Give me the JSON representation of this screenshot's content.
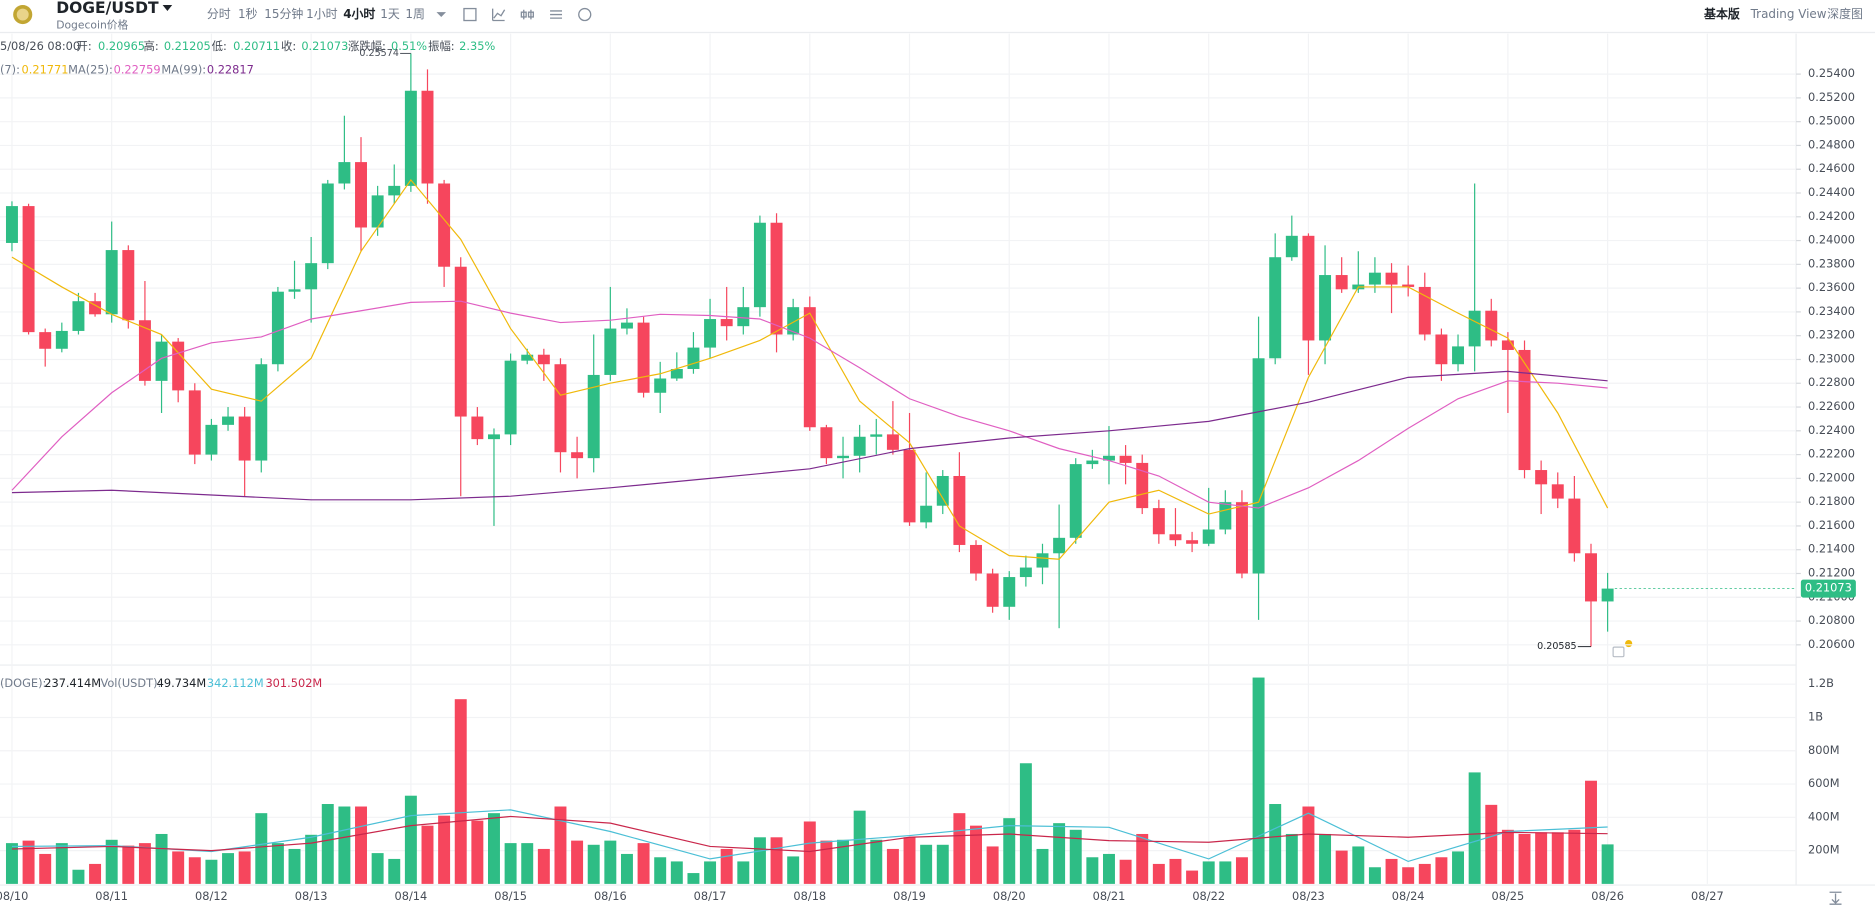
{
  "chart_data": {
    "type": "candlestick",
    "symbol": "DOGE/USDT",
    "subtitle": "Dogecoin价格",
    "intervals": [
      "分时",
      "1秒",
      "15分钟",
      "1小时",
      "4小时",
      "1天",
      "1周"
    ],
    "active_interval": "4小时",
    "views": [
      "基本版",
      "Trading View",
      "深度图"
    ],
    "active_view": "基本版",
    "ohlc_header": {
      "time": "5/08/26 08:00",
      "items": [
        {
          "label": "开:",
          "value": "0.20965"
        },
        {
          "label": "高:",
          "value": "0.21205"
        },
        {
          "label": "低:",
          "value": "0.20711"
        },
        {
          "label": "收:",
          "value": "0.21073"
        },
        {
          "label": "涨跌幅:",
          "value": "0.51%"
        },
        {
          "label": "振幅:",
          "value": "2.35%"
        }
      ]
    },
    "up_color": "#2ebd85",
    "down_color": "#f6465d",
    "categories": [
      "08/10",
      null,
      null,
      null,
      null,
      null,
      "08/11",
      null,
      null,
      null,
      null,
      null,
      "08/12",
      null,
      null,
      null,
      null,
      null,
      "08/13",
      null,
      null,
      null,
      null,
      null,
      "08/14",
      null,
      null,
      null,
      null,
      null,
      "08/15",
      null,
      null,
      null,
      null,
      null,
      "08/16",
      null,
      null,
      null,
      null,
      null,
      "08/17",
      null,
      null,
      null,
      null,
      null,
      "08/18",
      null,
      null,
      null,
      null,
      null,
      "08/19",
      null,
      null,
      null,
      null,
      null,
      "08/20",
      null,
      null,
      null,
      null,
      null,
      "08/21",
      null,
      null,
      null,
      null,
      null,
      "08/22",
      null,
      null,
      null,
      null,
      null,
      "08/23",
      null,
      null,
      null,
      null,
      null,
      "08/24",
      null,
      null,
      null,
      null,
      null,
      "08/25",
      null,
      null,
      null,
      null,
      null,
      "08/26",
      null,
      null,
      null,
      null,
      null,
      "08/27"
    ],
    "open": [
      0.2398,
      0.2429,
      0.2323,
      0.2309,
      0.2324,
      0.2349,
      0.2338,
      0.2392,
      0.2333,
      0.2282,
      0.2315,
      0.2274,
      0.222,
      0.2245,
      0.2252,
      0.2215,
      0.2296,
      0.2357,
      0.2359,
      0.2381,
      0.2448,
      0.2466,
      0.2411,
      0.2438,
      0.2446,
      0.2526,
      0.2448,
      0.2378,
      0.2252,
      0.2233,
      0.2237,
      0.2299,
      0.2304,
      0.2296,
      0.2222,
      0.2217,
      0.2287,
      0.2326,
      0.2331,
      0.2272,
      0.2284,
      0.2292,
      0.231,
      0.2334,
      0.2328,
      0.2344,
      0.2415,
      0.2321,
      0.2344,
      0.2243,
      0.2217,
      0.2219,
      0.2235,
      0.2237,
      0.2224,
      0.2163,
      0.2177,
      0.2202,
      0.2144,
      0.212,
      0.2092,
      0.2117,
      0.2125,
      0.2137,
      0.215,
      0.2212,
      0.2215,
      0.2219,
      0.2213,
      0.2175,
      0.2153,
      0.2148,
      0.2145,
      0.2157,
      0.218,
      0.212,
      0.2301,
      0.2386,
      0.2404,
      0.2316,
      0.2371,
      0.2359,
      0.2363,
      0.2373,
      0.2363,
      0.2361,
      0.2321,
      0.2296,
      0.2311,
      0.2341,
      0.2316,
      0.2308,
      0.2207,
      0.2195,
      0.2183,
      0.2137,
      0.20965,
      null,
      null,
      null,
      null,
      null,
      null
    ],
    "high": [
      0.2433,
      0.2431,
      0.2326,
      0.2331,
      0.2356,
      0.2356,
      0.2416,
      0.2396,
      0.2366,
      0.2321,
      0.2318,
      0.228,
      0.225,
      0.226,
      0.226,
      0.2301,
      0.2361,
      0.2383,
      0.2403,
      0.2451,
      0.2505,
      0.2487,
      0.2446,
      0.2464,
      0.25574,
      0.2544,
      0.2451,
      0.2386,
      0.226,
      0.2242,
      0.2305,
      0.2309,
      0.2309,
      0.2301,
      0.2235,
      0.2321,
      0.2361,
      0.2343,
      0.2336,
      0.2298,
      0.2306,
      0.2323,
      0.2351,
      0.2361,
      0.2361,
      0.2421,
      0.2423,
      0.2351,
      0.2353,
      0.2245,
      0.2235,
      0.2245,
      0.225,
      0.2265,
      0.2255,
      0.2205,
      0.2207,
      0.2222,
      0.2148,
      0.2124,
      0.2122,
      0.2135,
      0.2145,
      0.2178,
      0.2217,
      0.2224,
      0.2244,
      0.2228,
      0.222,
      0.2182,
      0.2175,
      0.2155,
      0.2192,
      0.219,
      0.219,
      0.2336,
      0.2406,
      0.2421,
      0.2406,
      0.2396,
      0.2386,
      0.2391,
      0.2386,
      0.2381,
      0.2379,
      0.2373,
      0.2326,
      0.2321,
      0.2448,
      0.2351,
      0.2323,
      0.2316,
      0.2215,
      0.2205,
      0.2202,
      0.2145,
      0.21205,
      null,
      null,
      null,
      null,
      null,
      null
    ],
    "low": [
      0.2391,
      0.2321,
      0.2294,
      0.2306,
      0.2321,
      0.2336,
      0.2331,
      0.2326,
      0.2278,
      0.2255,
      0.2264,
      0.2212,
      0.2215,
      0.224,
      0.2185,
      0.2205,
      0.229,
      0.2351,
      0.2331,
      0.2376,
      0.2443,
      0.2391,
      0.2404,
      0.2431,
      0.2441,
      0.2431,
      0.2361,
      0.2185,
      0.2228,
      0.216,
      0.2228,
      0.2296,
      0.2282,
      0.2205,
      0.22,
      0.2205,
      0.2282,
      0.2321,
      0.2268,
      0.2255,
      0.2282,
      0.2288,
      0.2301,
      0.2316,
      0.2321,
      0.2336,
      0.2306,
      0.2316,
      0.224,
      0.2212,
      0.22,
      0.2205,
      0.222,
      0.222,
      0.216,
      0.2158,
      0.217,
      0.2138,
      0.2114,
      0.2087,
      0.2081,
      0.2109,
      0.2111,
      0.2074,
      0.2145,
      0.2208,
      0.2195,
      0.2195,
      0.217,
      0.2145,
      0.2143,
      0.2138,
      0.2143,
      0.2153,
      0.2116,
      0.2081,
      0.2296,
      0.2383,
      0.2287,
      0.2296,
      0.2356,
      0.2356,
      0.2356,
      0.2339,
      0.2353,
      0.2316,
      0.2282,
      0.229,
      0.229,
      0.2311,
      0.2255,
      0.22,
      0.217,
      0.2175,
      0.213,
      0.20585,
      0.20711,
      null,
      null,
      null,
      null,
      null,
      null
    ],
    "close": [
      0.2429,
      0.2323,
      0.2309,
      0.2324,
      0.2349,
      0.2338,
      0.2392,
      0.2333,
      0.2282,
      0.2315,
      0.2274,
      0.222,
      0.2245,
      0.2252,
      0.2215,
      0.2296,
      0.2357,
      0.2359,
      0.2381,
      0.2448,
      0.2466,
      0.2411,
      0.2438,
      0.2446,
      0.2526,
      0.2448,
      0.2378,
      0.2252,
      0.2233,
      0.2237,
      0.2299,
      0.2304,
      0.2296,
      0.2222,
      0.2217,
      0.2287,
      0.2326,
      0.2331,
      0.2272,
      0.2284,
      0.2292,
      0.231,
      0.2334,
      0.2328,
      0.2344,
      0.2415,
      0.2321,
      0.2344,
      0.2243,
      0.2217,
      0.2219,
      0.2235,
      0.2237,
      0.2224,
      0.2163,
      0.2177,
      0.2202,
      0.2144,
      0.212,
      0.2092,
      0.2117,
      0.2125,
      0.2137,
      0.215,
      0.2212,
      0.2215,
      0.2219,
      0.2213,
      0.2175,
      0.2153,
      0.2148,
      0.2145,
      0.2157,
      0.218,
      0.212,
      0.2301,
      0.2386,
      0.2404,
      0.2316,
      0.2371,
      0.2359,
      0.2363,
      0.2373,
      0.2363,
      0.2361,
      0.2321,
      0.2296,
      0.2311,
      0.2341,
      0.2316,
      0.2308,
      0.2207,
      0.2195,
      0.2183,
      0.2137,
      0.20965,
      0.21073,
      null,
      null,
      null,
      null,
      null,
      null
    ],
    "high_label": "0.25574",
    "low_label": "0.20585",
    "price_tag": "0.21073",
    "ylim": [
      0.2044,
      0.2574
    ],
    "yticks": [
      {
        "value": 0.206,
        "label": "0.20600"
      },
      {
        "value": 0.208,
        "label": "0.20800"
      },
      {
        "value": 0.21,
        "label": "0.21000"
      },
      {
        "value": 0.212,
        "label": "0.21200"
      },
      {
        "value": 0.214,
        "label": "0.21400"
      },
      {
        "value": 0.216,
        "label": "0.21600"
      },
      {
        "value": 0.218,
        "label": "0.21800"
      },
      {
        "value": 0.22,
        "label": "0.22000"
      },
      {
        "value": 0.222,
        "label": "0.22200"
      },
      {
        "value": 0.224,
        "label": "0.22400"
      },
      {
        "value": 0.226,
        "label": "0.22600"
      },
      {
        "value": 0.228,
        "label": "0.22800"
      },
      {
        "value": 0.23,
        "label": "0.23000"
      },
      {
        "value": 0.232,
        "label": "0.23200"
      },
      {
        "value": 0.234,
        "label": "0.23400"
      },
      {
        "value": 0.236,
        "label": "0.23600"
      },
      {
        "value": 0.238,
        "label": "0.23800"
      },
      {
        "value": 0.24,
        "label": "0.24000"
      },
      {
        "value": 0.242,
        "label": "0.24200"
      },
      {
        "value": 0.244,
        "label": "0.24400"
      },
      {
        "value": 0.246,
        "label": "0.24600"
      },
      {
        "value": 0.248,
        "label": "0.24800"
      },
      {
        "value": 0.25,
        "label": "0.25000"
      },
      {
        "value": 0.252,
        "label": "0.25200"
      },
      {
        "value": 0.254,
        "label": "0.25400"
      }
    ],
    "grid": true,
    "series": [
      {
        "name": "(7):",
        "color": "#f0b90b",
        "current": "0.21771",
        "x": [
          0,
          3,
          6,
          9,
          12,
          15,
          18,
          21,
          24,
          27,
          30,
          33,
          36,
          39,
          42,
          45,
          48,
          51,
          54,
          57,
          60,
          63,
          66,
          69,
          72,
          75,
          78,
          81,
          84,
          87,
          90,
          93,
          96
        ],
        "values": [
          0.2386,
          0.2361,
          0.2338,
          0.2321,
          0.2275,
          0.2265,
          0.2301,
          0.2391,
          0.2451,
          0.2401,
          0.2326,
          0.227,
          0.228,
          0.2288,
          0.2301,
          0.2316,
          0.2339,
          0.2265,
          0.223,
          0.216,
          0.2135,
          0.2132,
          0.218,
          0.219,
          0.217,
          0.218,
          0.2285,
          0.2361,
          0.2361,
          0.2339,
          0.2318,
          0.2255,
          0.2175
        ]
      },
      {
        "name": "MA(25):",
        "color": "#e05fc2",
        "current": "0.22759",
        "x": [
          0,
          3,
          6,
          9,
          12,
          15,
          18,
          21,
          24,
          27,
          30,
          33,
          36,
          39,
          42,
          45,
          48,
          51,
          54,
          57,
          60,
          63,
          66,
          69,
          72,
          75,
          78,
          81,
          84,
          87,
          90,
          93,
          96
        ],
        "values": [
          0.219,
          0.2235,
          0.2272,
          0.2301,
          0.2314,
          0.2319,
          0.2334,
          0.2341,
          0.2348,
          0.2349,
          0.2339,
          0.2331,
          0.2333,
          0.2338,
          0.2337,
          0.2334,
          0.2318,
          0.2293,
          0.2267,
          0.2252,
          0.224,
          0.2225,
          0.2215,
          0.2202,
          0.218,
          0.2175,
          0.2192,
          0.2215,
          0.2242,
          0.2267,
          0.2282,
          0.228,
          0.2276
        ]
      },
      {
        "name": "MA(99):",
        "color": "#7d2b8e",
        "current": "0.22817",
        "x": [
          0,
          6,
          12,
          18,
          24,
          30,
          36,
          42,
          48,
          54,
          60,
          66,
          72,
          78,
          84,
          90,
          96
        ],
        "values": [
          0.2188,
          0.219,
          0.2186,
          0.2182,
          0.2182,
          0.2185,
          0.2192,
          0.22,
          0.2208,
          0.2225,
          0.2234,
          0.224,
          0.2248,
          0.2264,
          0.2285,
          0.229,
          0.2282
        ]
      }
    ],
    "volume": {
      "header": [
        {
          "label": "(DOGE):",
          "value": "237.414M"
        },
        {
          "label": "Vol(USDT):",
          "value": "49.734M"
        }
      ],
      "ylim": [
        0,
        1272
      ],
      "yticks": [
        {
          "value": 200,
          "label": "200M"
        },
        {
          "value": 400,
          "label": "400M"
        },
        {
          "value": 600,
          "label": "600M"
        },
        {
          "value": 800,
          "label": "800M"
        },
        {
          "value": 1000,
          "label": "1B"
        },
        {
          "value": 1200,
          "label": "1.2B"
        }
      ],
      "values": [
        245,
        260,
        180,
        245,
        85,
        120,
        265,
        230,
        245,
        300,
        195,
        160,
        145,
        185,
        195,
        425,
        245,
        210,
        295,
        480,
        465,
        465,
        185,
        150,
        530,
        350,
        410,
        1110,
        380,
        425,
        245,
        245,
        210,
        465,
        260,
        235,
        260,
        180,
        245,
        160,
        135,
        65,
        135,
        210,
        135,
        280,
        280,
        165,
        375,
        260,
        265,
        440,
        265,
        210,
        280,
        235,
        235,
        425,
        350,
        225,
        395,
        725,
        210,
        365,
        325,
        160,
        180,
        145,
        300,
        120,
        150,
        80,
        135,
        135,
        160,
        1240,
        480,
        300,
        465,
        300,
        200,
        225,
        100,
        150,
        100,
        120,
        160,
        195,
        670,
        475,
        325,
        300,
        310,
        310,
        325,
        620,
        237.414,
        null,
        null,
        null,
        null,
        null,
        null
      ],
      "series": [
        {
          "color": "#4bbfd6",
          "current": "342.112M",
          "x": [
            0,
            6,
            12,
            18,
            24,
            30,
            36,
            42,
            48,
            54,
            60,
            66,
            72,
            78,
            84,
            90,
            96
          ],
          "values": [
            225,
            230,
            195,
            280,
            410,
            445,
            315,
            150,
            245,
            290,
            350,
            340,
            150,
            425,
            135,
            315,
            342.112
          ]
        },
        {
          "color": "#c9274b",
          "current": "301.502M",
          "x": [
            0,
            6,
            12,
            18,
            24,
            30,
            36,
            42,
            48,
            54,
            60,
            66,
            72,
            78,
            84,
            90,
            96
          ],
          "values": [
            210,
            225,
            200,
            245,
            350,
            405,
            365,
            225,
            195,
            280,
            300,
            260,
            250,
            300,
            280,
            310,
            301.502
          ]
        }
      ]
    }
  }
}
